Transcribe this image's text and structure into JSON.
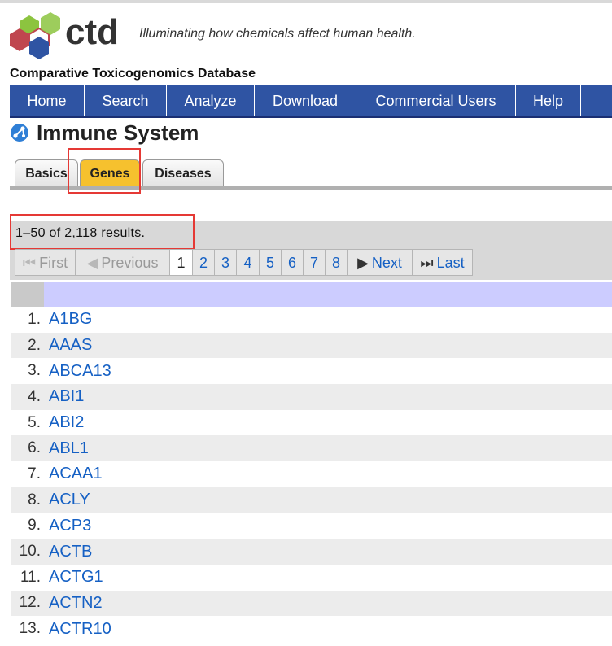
{
  "brand": {
    "logo_text": "ctd",
    "tagline": "Illuminating how chemicals affect human health.",
    "db_name": "Comparative Toxicogenomics Database"
  },
  "nav": [
    "Home",
    "Search",
    "Analyze",
    "Download",
    "Commercial Users",
    "Help"
  ],
  "page": {
    "title": "Immune System"
  },
  "tabs": [
    "Basics",
    "Genes",
    "Diseases"
  ],
  "active_tab": "Genes",
  "results": {
    "summary": "1–50 of 2,118 results."
  },
  "pager": {
    "first": "First",
    "previous": "Previous",
    "pages": [
      "1",
      "2",
      "3",
      "4",
      "5",
      "6",
      "7",
      "8"
    ],
    "current": "1",
    "next": "Next",
    "last": "Last"
  },
  "rows": [
    {
      "n": "1.",
      "gene": "A1BG"
    },
    {
      "n": "2.",
      "gene": "AAAS"
    },
    {
      "n": "3.",
      "gene": "ABCA13"
    },
    {
      "n": "4.",
      "gene": "ABI1"
    },
    {
      "n": "5.",
      "gene": "ABI2"
    },
    {
      "n": "6.",
      "gene": "ABL1"
    },
    {
      "n": "7.",
      "gene": "ACAA1"
    },
    {
      "n": "8.",
      "gene": "ACLY"
    },
    {
      "n": "9.",
      "gene": "ACP3"
    },
    {
      "n": "10.",
      "gene": "ACTB"
    },
    {
      "n": "11.",
      "gene": "ACTG1"
    },
    {
      "n": "12.",
      "gene": "ACTN2"
    },
    {
      "n": "13.",
      "gene": "ACTR10"
    }
  ],
  "colors": {
    "nav_bg": "#2f54a3",
    "active_tab": "#f6c12e",
    "link": "#1560c4",
    "highlight": "#e53935",
    "table_header": "#ccccff"
  }
}
